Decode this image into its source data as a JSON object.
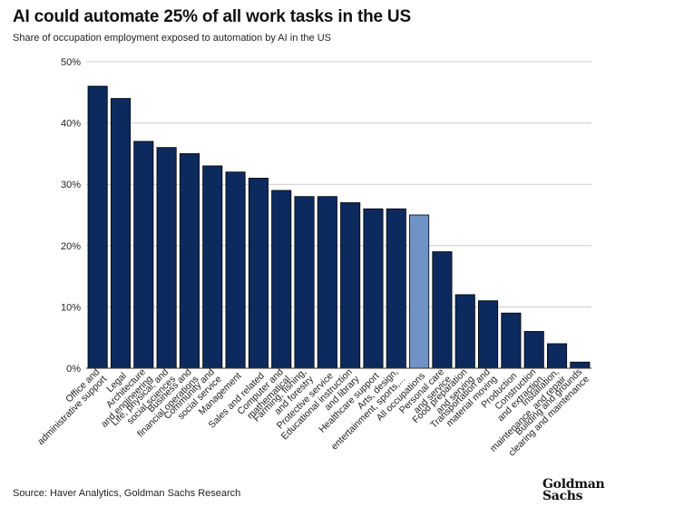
{
  "header": {
    "title": "AI could automate 25% of all work tasks in the US",
    "subtitle": "Share of occupation employment exposed to automation by AI in the US"
  },
  "footer": {
    "source": "Source: Haver Analytics, Goldman Sachs Research",
    "logo_line1": "Goldman",
    "logo_line2": "Sachs"
  },
  "colors": {
    "bar": "#0c2a5e",
    "highlight_bar": "#6f93c6",
    "grid": "#cccccc",
    "axis": "#333333"
  },
  "chart_data": {
    "type": "bar",
    "title": "AI could automate 25% of all work tasks in the US",
    "subtitle": "Share of occupation employment exposed to automation by AI in the US",
    "xlabel": "",
    "ylabel": "",
    "ylim": [
      0,
      50
    ],
    "yticks": [
      0,
      10,
      20,
      30,
      40,
      50
    ],
    "ytick_labels": [
      "0%",
      "10%",
      "20%",
      "30%",
      "40%",
      "50%"
    ],
    "grid": "horizontal",
    "highlight_category": "All occupations",
    "categories": [
      "Office and administrative support",
      "Legal",
      "Architecture and engineering",
      "Life, physical, and social sciences",
      "Business and financial operations",
      "Community and social service",
      "Management",
      "Sales and related",
      "Computer and mathematical",
      "Farming, fishing, and forestry",
      "Protective service",
      "Educational instruction and library",
      "Healthcare support",
      "Arts, design, entertainment, sports,...",
      "All occupations",
      "Personal care and service",
      "Food preparation and serving",
      "Transportation and material moving",
      "Production",
      "Construction and extraction",
      "Installation, maintenance, and repair",
      "Building and grounds clearing and maintenance"
    ],
    "values": [
      46,
      44,
      37,
      36,
      35,
      33,
      32,
      31,
      29,
      28,
      28,
      27,
      26,
      26,
      25,
      19,
      12,
      11,
      9,
      6,
      4,
      1
    ]
  }
}
